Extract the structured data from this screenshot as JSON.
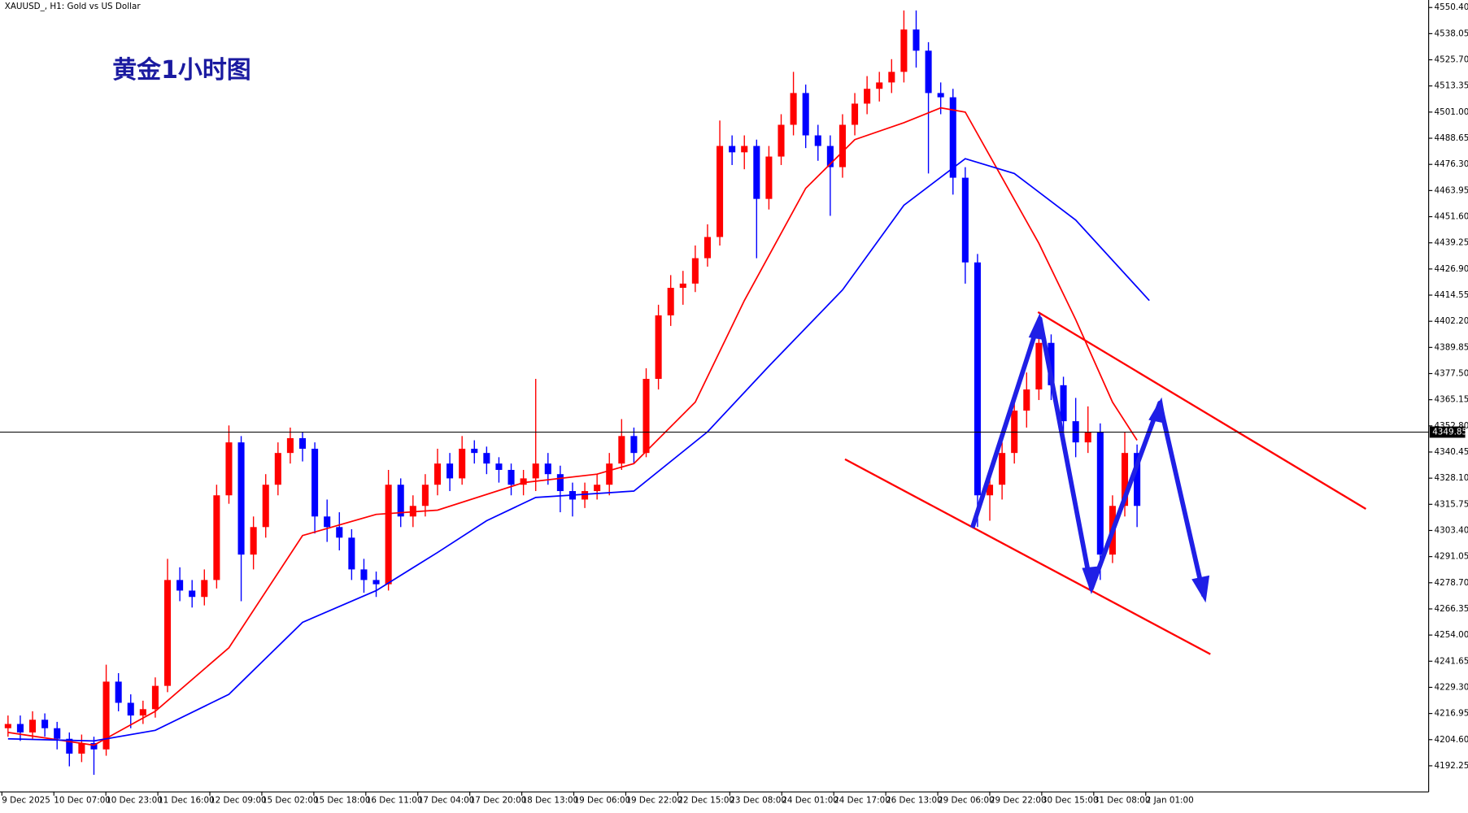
{
  "chart_data": {
    "type": "candlestick",
    "title": "XAUUSD_, H1:  Gold vs US Dollar",
    "annotation": "黄金1小时图",
    "xtick_labels": [
      "9 Dec 2025",
      "10 Dec 07:00",
      "10 Dec 23:00",
      "11 Dec 16:00",
      "12 Dec 09:00",
      "15 Dec 02:00",
      "15 Dec 18:00",
      "16 Dec 11:00",
      "17 Dec 04:00",
      "17 Dec 20:00",
      "18 Dec 13:00",
      "19 Dec 06:00",
      "19 Dec 22:00",
      "22 Dec 15:00",
      "23 Dec 08:00",
      "24 Dec 01:00",
      "24 Dec 17:00",
      "26 Dec 13:00",
      "29 Dec 06:00",
      "29 Dec 22:00",
      "30 Dec 15:00",
      "31 Dec 08:00",
      "2 Jan 01:00"
    ],
    "open": [
      4210,
      4212,
      4208,
      4214,
      4210,
      4205,
      4198,
      4203,
      4200,
      4232,
      4222,
      4216,
      4219,
      4230,
      4280,
      4275,
      4272,
      4280,
      4320,
      4345,
      4292,
      4305,
      4325,
      4340,
      4347,
      4342,
      4310,
      4305,
      4300,
      4285,
      4280,
      4278,
      4325,
      4310,
      4315,
      4325,
      4335,
      4328,
      4342,
      4340,
      4335,
      4332,
      4325,
      4328,
      4335,
      4330,
      4322,
      4318,
      4322,
      4325,
      4335,
      4348,
      4340,
      4375,
      4405,
      4418,
      4420,
      4432,
      4442,
      4485,
      4482,
      4485,
      4460,
      4480,
      4495,
      4510,
      4490,
      4485,
      4475,
      4495,
      4505,
      4512,
      4515,
      4520,
      4540,
      4530,
      4510,
      4508,
      4470,
      4430,
      4320,
      4325,
      4340,
      4360,
      4370,
      4392,
      4372,
      4355,
      4345,
      4350,
      4292,
      4315,
      4340
    ],
    "high": [
      4216,
      4216,
      4218,
      4217,
      4213,
      4208,
      4207,
      4206,
      4240,
      4236,
      4226,
      4223,
      4234,
      4290,
      4286,
      4280,
      4285,
      4325,
      4353,
      4348,
      4310,
      4330,
      4345,
      4352,
      4350,
      4345,
      4318,
      4312,
      4304,
      4290,
      4284,
      4332,
      4328,
      4320,
      4330,
      4342,
      4340,
      4348,
      4346,
      4343,
      4338,
      4335,
      4332,
      4375,
      4340,
      4334,
      4326,
      4326,
      4330,
      4340,
      4356,
      4352,
      4380,
      4410,
      4424,
      4426,
      4438,
      4448,
      4497,
      4490,
      4490,
      4488,
      4485,
      4500,
      4520,
      4514,
      4495,
      4490,
      4500,
      4510,
      4518,
      4520,
      4526,
      4549,
      4549,
      4534,
      4515,
      4512,
      4475,
      4434,
      4332,
      4345,
      4365,
      4378,
      4402,
      4396,
      4376,
      4366,
      4362,
      4354,
      4320,
      4350,
      4344
    ],
    "low": [
      4206,
      4204,
      4205,
      4206,
      4200,
      4192,
      4194,
      4188,
      4197,
      4218,
      4210,
      4212,
      4215,
      4227,
      4270,
      4267,
      4268,
      4276,
      4316,
      4270,
      4285,
      4300,
      4320,
      4335,
      4336,
      4302,
      4298,
      4294,
      4280,
      4274,
      4272,
      4275,
      4305,
      4305,
      4310,
      4320,
      4322,
      4325,
      4335,
      4330,
      4326,
      4320,
      4320,
      4322,
      4325,
      4312,
      4310,
      4314,
      4318,
      4320,
      4332,
      4335,
      4338,
      4370,
      4400,
      4410,
      4416,
      4428,
      4438,
      4476,
      4474,
      4432,
      4455,
      4476,
      4490,
      4484,
      4478,
      4452,
      4470,
      4490,
      4500,
      4506,
      4510,
      4515,
      4522,
      4472,
      4500,
      4462,
      4420,
      4305,
      4308,
      4318,
      4335,
      4352,
      4365,
      4365,
      4348,
      4338,
      4340,
      4280,
      4288,
      4310,
      4305
    ],
    "close": [
      4212,
      4208,
      4214,
      4210,
      4205,
      4198,
      4203,
      4200,
      4232,
      4222,
      4216,
      4219,
      4230,
      4280,
      4275,
      4272,
      4280,
      4320,
      4345,
      4292,
      4305,
      4325,
      4340,
      4347,
      4342,
      4310,
      4305,
      4300,
      4285,
      4280,
      4278,
      4325,
      4310,
      4315,
      4325,
      4335,
      4328,
      4342,
      4340,
      4335,
      4332,
      4325,
      4328,
      4335,
      4330,
      4322,
      4318,
      4322,
      4325,
      4335,
      4348,
      4340,
      4375,
      4405,
      4418,
      4420,
      4432,
      4442,
      4485,
      4482,
      4485,
      4460,
      4480,
      4495,
      4510,
      4490,
      4485,
      4475,
      4495,
      4505,
      4512,
      4515,
      4520,
      4540,
      4530,
      4510,
      4508,
      4470,
      4430,
      4320,
      4325,
      4340,
      4360,
      4370,
      4392,
      4372,
      4355,
      4345,
      4350,
      4292,
      4315,
      4340,
      4315
    ],
    "up_color": "#ff0000",
    "down_color": "#0000ff",
    "moving_averages": [
      {
        "color": "#ff0000",
        "x": [
          0,
          7,
          12,
          18,
          24,
          30,
          35,
          42,
          48,
          51,
          56,
          60,
          65,
          69,
          73,
          76,
          78,
          81,
          84,
          87,
          90,
          92
        ],
        "values": [
          4208,
          4202,
          4218,
          4248,
          4301,
          4311,
          4313,
          4326,
          4330,
          4335,
          4364,
          4412,
          4465,
          4488,
          4496,
          4503,
          4501,
          4470,
          4439,
          4403,
          4364,
          4346
        ]
      },
      {
        "color": "#0000ff",
        "x": [
          0,
          7,
          12,
          18,
          24,
          30,
          35,
          39,
          43,
          51,
          57,
          62,
          68,
          73,
          78,
          82,
          87,
          93
        ],
        "values": [
          4205,
          4204,
          4209,
          4226,
          4260,
          4275,
          4293,
          4308,
          4319,
          4322,
          4350,
          4381,
          4417,
          4457,
          4479,
          4472,
          4450,
          4412
        ]
      }
    ],
    "ylim": [
      4179.9,
      4553.94
    ],
    "yticks": [
      {
        "value": 4550.4,
        "label": "4550.40"
      },
      4538.05,
      {
        "value": 4525.7,
        "label": "4525.70"
      },
      4513.35,
      {
        "value": 4501,
        "label": "4501.00"
      },
      4488.65,
      {
        "value": 4476.3,
        "label": "4476.30"
      },
      4463.95,
      {
        "value": 4451.6,
        "label": "4451.60"
      },
      4439.25,
      {
        "value": 4426.9,
        "label": "4426.90"
      },
      4414.55,
      {
        "value": 4402.2,
        "label": "4402.20"
      },
      4389.85,
      {
        "value": 4377.5,
        "label": "4377.50"
      },
      4365.15,
      {
        "value": 4352.8,
        "label": "4352.80"
      },
      4340.45,
      {
        "value": 4328.1,
        "label": "4328.10"
      },
      4315.75,
      {
        "value": 4303.4,
        "label": "4303.40"
      },
      4291.05,
      {
        "value": 4278.7,
        "label": "4278.70"
      },
      4266.35,
      {
        "value": 4254,
        "label": "4254.00"
      },
      4241.65,
      {
        "value": 4229.3,
        "label": "4229.30"
      },
      4216.95,
      {
        "value": 4204.6,
        "label": "4204.60"
      },
      4192.25
    ],
    "current_price": 4349.85
  }
}
